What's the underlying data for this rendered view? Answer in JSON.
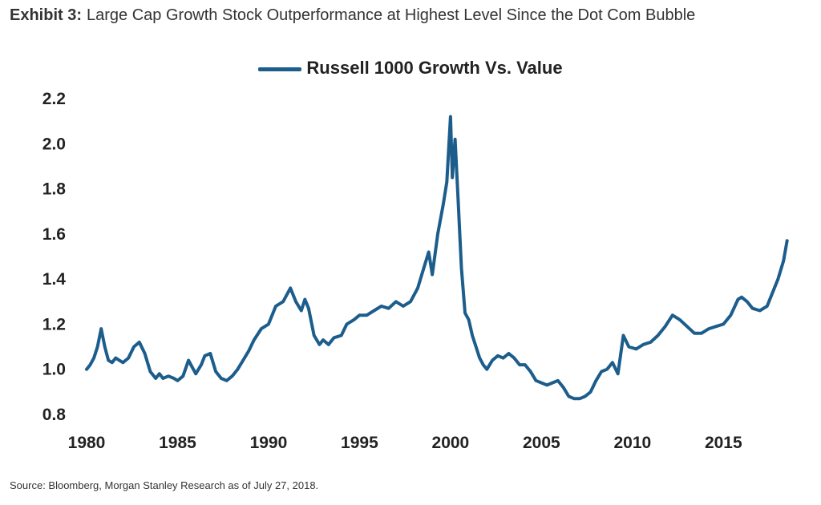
{
  "header": {
    "exhibit_label": "Exhibit 3:",
    "exhibit_title": "Large Cap Growth Stock Outperformance at Highest Level Since the Dot Com Bubble"
  },
  "footer": {
    "source": "Source: Bloomberg, Morgan Stanley Research as of July 27, 2018."
  },
  "chart_data": {
    "type": "line",
    "title": "",
    "xlabel": "",
    "ylabel": "",
    "xlim": [
      1980,
      2018.6
    ],
    "ylim": [
      0.8,
      2.2
    ],
    "x_ticks": [
      "1980",
      "1985",
      "1990",
      "1995",
      "2000",
      "2005",
      "2010",
      "2015"
    ],
    "y_ticks": [
      "0.8",
      "1.0",
      "1.2",
      "1.4",
      "1.6",
      "1.8",
      "2.0",
      "2.2"
    ],
    "grid": false,
    "legend": "top-center",
    "series": [
      {
        "name": "Russell 1000 Growth Vs. Value",
        "color": "#1c5d8c",
        "x": [
          1980.0,
          1980.2,
          1980.4,
          1980.6,
          1980.8,
          1981.0,
          1981.2,
          1981.4,
          1981.6,
          1981.8,
          1982.0,
          1982.3,
          1982.6,
          1982.9,
          1983.2,
          1983.5,
          1983.8,
          1984.0,
          1984.2,
          1984.5,
          1984.8,
          1985.0,
          1985.3,
          1985.6,
          1986.0,
          1986.3,
          1986.5,
          1986.8,
          1987.1,
          1987.4,
          1987.7,
          1988.0,
          1988.3,
          1988.6,
          1988.9,
          1989.2,
          1989.6,
          1990.0,
          1990.4,
          1990.8,
          1991.2,
          1991.5,
          1991.8,
          1992.0,
          1992.2,
          1992.5,
          1992.8,
          1993.0,
          1993.3,
          1993.6,
          1994.0,
          1994.3,
          1994.7,
          1995.0,
          1995.4,
          1995.8,
          1996.2,
          1996.6,
          1997.0,
          1997.4,
          1997.8,
          1998.2,
          1998.5,
          1998.8,
          1999.0,
          1999.3,
          1999.6,
          1999.8,
          2000.0,
          2000.1,
          2000.25,
          2000.4,
          2000.6,
          2000.8,
          2001.0,
          2001.2,
          2001.4,
          2001.6,
          2001.8,
          2002.0,
          2002.3,
          2002.6,
          2002.9,
          2003.2,
          2003.5,
          2003.8,
          2004.1,
          2004.4,
          2004.7,
          2005.0,
          2005.3,
          2005.6,
          2005.9,
          2006.2,
          2006.5,
          2006.8,
          2007.1,
          2007.4,
          2007.7,
          2008.0,
          2008.3,
          2008.6,
          2008.9,
          2009.2,
          2009.5,
          2009.8,
          2010.2,
          2010.6,
          2011.0,
          2011.4,
          2011.8,
          2012.2,
          2012.6,
          2013.0,
          2013.4,
          2013.8,
          2014.2,
          2014.6,
          2015.0,
          2015.4,
          2015.8,
          2016.0,
          2016.3,
          2016.6,
          2017.0,
          2017.4,
          2017.7,
          2018.0,
          2018.3,
          2018.5
        ],
        "values": [
          1.0,
          1.02,
          1.05,
          1.1,
          1.18,
          1.1,
          1.04,
          1.03,
          1.05,
          1.04,
          1.03,
          1.05,
          1.1,
          1.12,
          1.07,
          0.99,
          0.96,
          0.98,
          0.96,
          0.97,
          0.96,
          0.95,
          0.97,
          1.04,
          0.98,
          1.02,
          1.06,
          1.07,
          0.99,
          0.96,
          0.95,
          0.97,
          1.0,
          1.04,
          1.08,
          1.13,
          1.18,
          1.2,
          1.28,
          1.3,
          1.36,
          1.3,
          1.26,
          1.31,
          1.27,
          1.15,
          1.11,
          1.13,
          1.11,
          1.14,
          1.15,
          1.2,
          1.22,
          1.24,
          1.24,
          1.26,
          1.28,
          1.27,
          1.3,
          1.28,
          1.3,
          1.36,
          1.44,
          1.52,
          1.42,
          1.6,
          1.73,
          1.83,
          2.12,
          1.85,
          2.02,
          1.78,
          1.45,
          1.25,
          1.22,
          1.15,
          1.1,
          1.05,
          1.02,
          1.0,
          1.04,
          1.06,
          1.05,
          1.07,
          1.05,
          1.02,
          1.02,
          0.99,
          0.95,
          0.94,
          0.93,
          0.94,
          0.95,
          0.92,
          0.88,
          0.87,
          0.87,
          0.88,
          0.9,
          0.95,
          0.99,
          1.0,
          1.03,
          0.98,
          1.15,
          1.1,
          1.09,
          1.11,
          1.12,
          1.15,
          1.19,
          1.24,
          1.22,
          1.19,
          1.16,
          1.16,
          1.18,
          1.19,
          1.2,
          1.24,
          1.31,
          1.32,
          1.3,
          1.27,
          1.26,
          1.28,
          1.34,
          1.4,
          1.48,
          1.57
        ]
      }
    ]
  }
}
